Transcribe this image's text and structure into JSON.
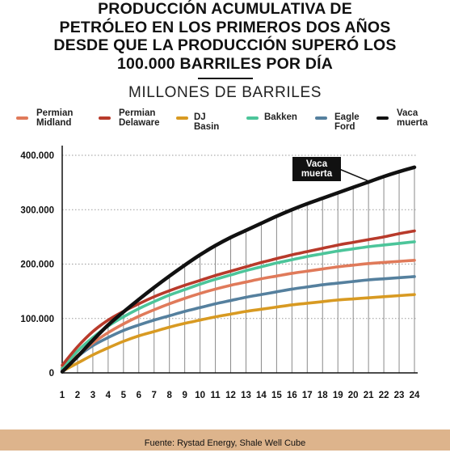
{
  "header": {
    "title_lines": [
      "PRODUCCIÓN ACUMULATIVA DE",
      "PETRÓLEO EN LOS PRIMEROS DOS AÑOS",
      "DESDE QUE LA PRODUCCIÓN SUPERÓ LOS",
      "100.000 BARRILES POR DÍA"
    ],
    "subtitle": "MILLONES DE BARRILES"
  },
  "legend": [
    {
      "label": "Permian\nMidland",
      "color": "#e07a5a"
    },
    {
      "label": "Permian\nDelaware",
      "color": "#b83a2b"
    },
    {
      "label": "DJ Basin",
      "color": "#d89a22"
    },
    {
      "label": "Bakken",
      "color": "#4cc59a"
    },
    {
      "label": "Eagle\nFord",
      "color": "#55809e"
    },
    {
      "label": "Vaca\nmuerta",
      "color": "#111111"
    }
  ],
  "chart_data": {
    "type": "line",
    "x": [
      1,
      2,
      3,
      4,
      5,
      6,
      7,
      8,
      9,
      10,
      11,
      12,
      13,
      14,
      15,
      16,
      17,
      18,
      19,
      20,
      21,
      22,
      23,
      24
    ],
    "ylim": [
      0,
      400000
    ],
    "yticks": [
      0,
      100000,
      200000,
      300000,
      400000
    ],
    "ytick_labels": [
      "0",
      "100.000",
      "200.000",
      "300.000",
      "400.000"
    ],
    "grid": "vertical",
    "annotation": "Vaca\nmuerta",
    "series": [
      {
        "name": "Permian Midland",
        "color": "#e07a5a",
        "values": [
          10000,
          32000,
          55000,
          74000,
          90000,
          104000,
          116000,
          127000,
          137000,
          146000,
          154000,
          161000,
          167000,
          173000,
          178000,
          183000,
          187000,
          191000,
          195000,
          198000,
          201000,
          203000,
          205000,
          207000
        ]
      },
      {
        "name": "Permian Delaware",
        "color": "#b83a2b",
        "values": [
          14000,
          48000,
          76000,
          97000,
          113000,
          127000,
          140000,
          151000,
          161000,
          170000,
          179000,
          187000,
          195000,
          203000,
          210000,
          217000,
          223000,
          229000,
          235000,
          240000,
          245000,
          250000,
          256000,
          261000
        ]
      },
      {
        "name": "DJ Basin",
        "color": "#d89a22",
        "values": [
          3000,
          18000,
          33000,
          46000,
          58000,
          68000,
          76000,
          84000,
          91000,
          97000,
          103000,
          108000,
          113000,
          117000,
          121000,
          125000,
          128000,
          131000,
          134000,
          136000,
          138000,
          140000,
          142000,
          144000
        ]
      },
      {
        "name": "Bakken",
        "color": "#4cc59a",
        "values": [
          8000,
          40000,
          65000,
          86000,
          103000,
          118000,
          131000,
          143000,
          153000,
          163000,
          172000,
          180000,
          188000,
          195000,
          202000,
          208000,
          214000,
          219000,
          224000,
          228000,
          232000,
          235000,
          238000,
          241000
        ]
      },
      {
        "name": "Eagle Ford",
        "color": "#55809e",
        "values": [
          6000,
          30000,
          50000,
          65000,
          78000,
          88000,
          97000,
          105000,
          113000,
          120000,
          127000,
          133000,
          139000,
          144000,
          149000,
          154000,
          158000,
          162000,
          165000,
          168000,
          171000,
          173000,
          175000,
          177000
        ]
      },
      {
        "name": "Vaca muerta",
        "color": "#111111",
        "values": [
          2000,
          30000,
          60000,
          88000,
          112000,
          135000,
          157000,
          178000,
          198000,
          217000,
          234000,
          249000,
          262000,
          275000,
          288000,
          300000,
          311000,
          321000,
          331000,
          341000,
          351000,
          361000,
          370000,
          378000
        ]
      }
    ]
  },
  "footer": {
    "source": "Fuente: Rystad Energy, Shale Well Cube"
  }
}
